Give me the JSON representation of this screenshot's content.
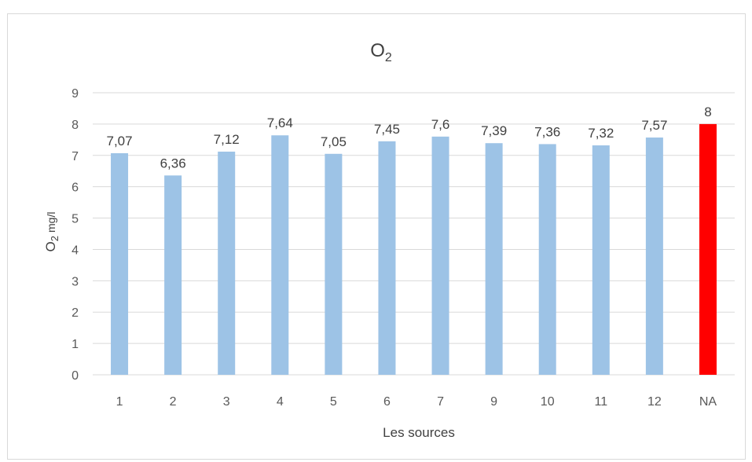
{
  "chart_data": {
    "type": "bar",
    "title": "O",
    "title_sub": "2",
    "ylabel_main": "O",
    "ylabel_sub": "2",
    "ylabel_unit": "mg/l",
    "xlabel": "Les sources",
    "categories": [
      "1",
      "2",
      "3",
      "4",
      "5",
      "6",
      "7",
      "9",
      "10",
      "11",
      "12",
      "NA"
    ],
    "values": [
      7.07,
      6.36,
      7.12,
      7.64,
      7.05,
      7.45,
      7.6,
      7.39,
      7.36,
      7.32,
      7.57,
      8
    ],
    "data_labels": [
      "7,07",
      "6,36",
      "7,12",
      "7,64",
      "7,05",
      "7,45",
      "7,6",
      "7,39",
      "7,36",
      "7,32",
      "7,57",
      "8"
    ],
    "ylim": [
      0,
      9
    ],
    "yticks": [
      0,
      1,
      2,
      3,
      4,
      5,
      6,
      7,
      8,
      9
    ],
    "grid": true,
    "legend": "none",
    "colors": {
      "bar": "#9dc3e6",
      "highlight": "#ff0000",
      "grid": "#d9d9d9"
    },
    "highlight_index": 11
  }
}
